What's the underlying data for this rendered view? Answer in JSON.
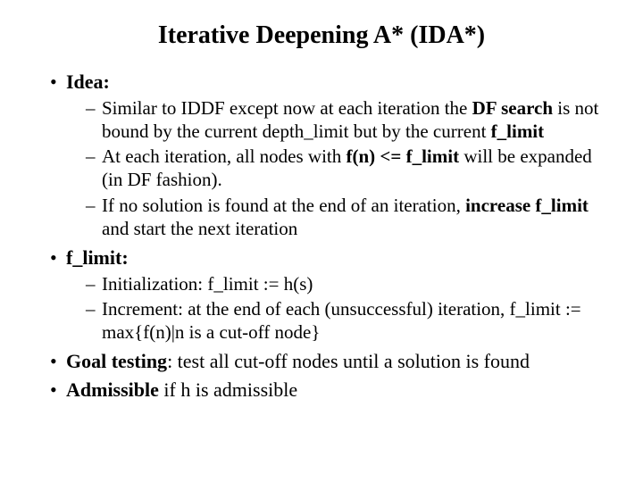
{
  "title": "Iterative Deepening A* (IDA*)",
  "bullets": [
    {
      "label_html": "<span class=\"b\">Idea:</span>",
      "sub": [
        "Similar to IDDF except now at each iteration the <span class=\"b\">DF search</span> is not bound by the current depth_limit but by the current <span class=\"b\">f_limit</span>",
        "At each iteration, all nodes with <span class=\"b\">f(n) &lt;= f_limit</span> will be expanded (in DF fashion).",
        "If no solution is found at the end of an iteration, <span class=\"b\">increase f_limit</span> and start the next iteration"
      ]
    },
    {
      "label_html": "<span class=\"b\">f_limit:</span>",
      "sub": [
        "Initialization: f_limit := h(s)",
        "Increment: at the end of each (unsuccessful) iteration, f_limit :=  max{f(n)|n is a cut-off node}"
      ]
    },
    {
      "label_html": "<span class=\"b\">Goal testing</span>: test all cut-off nodes until a solution is found",
      "sub": []
    },
    {
      "label_html": "<span class=\"b\">Admissible</span> if h is admissible",
      "sub": []
    }
  ],
  "style": {
    "background": "#ffffff",
    "text_color": "#000000",
    "title_fontsize": 28,
    "body_fontsize": 22,
    "sub_fontsize": 21,
    "font_family": "Times New Roman"
  }
}
